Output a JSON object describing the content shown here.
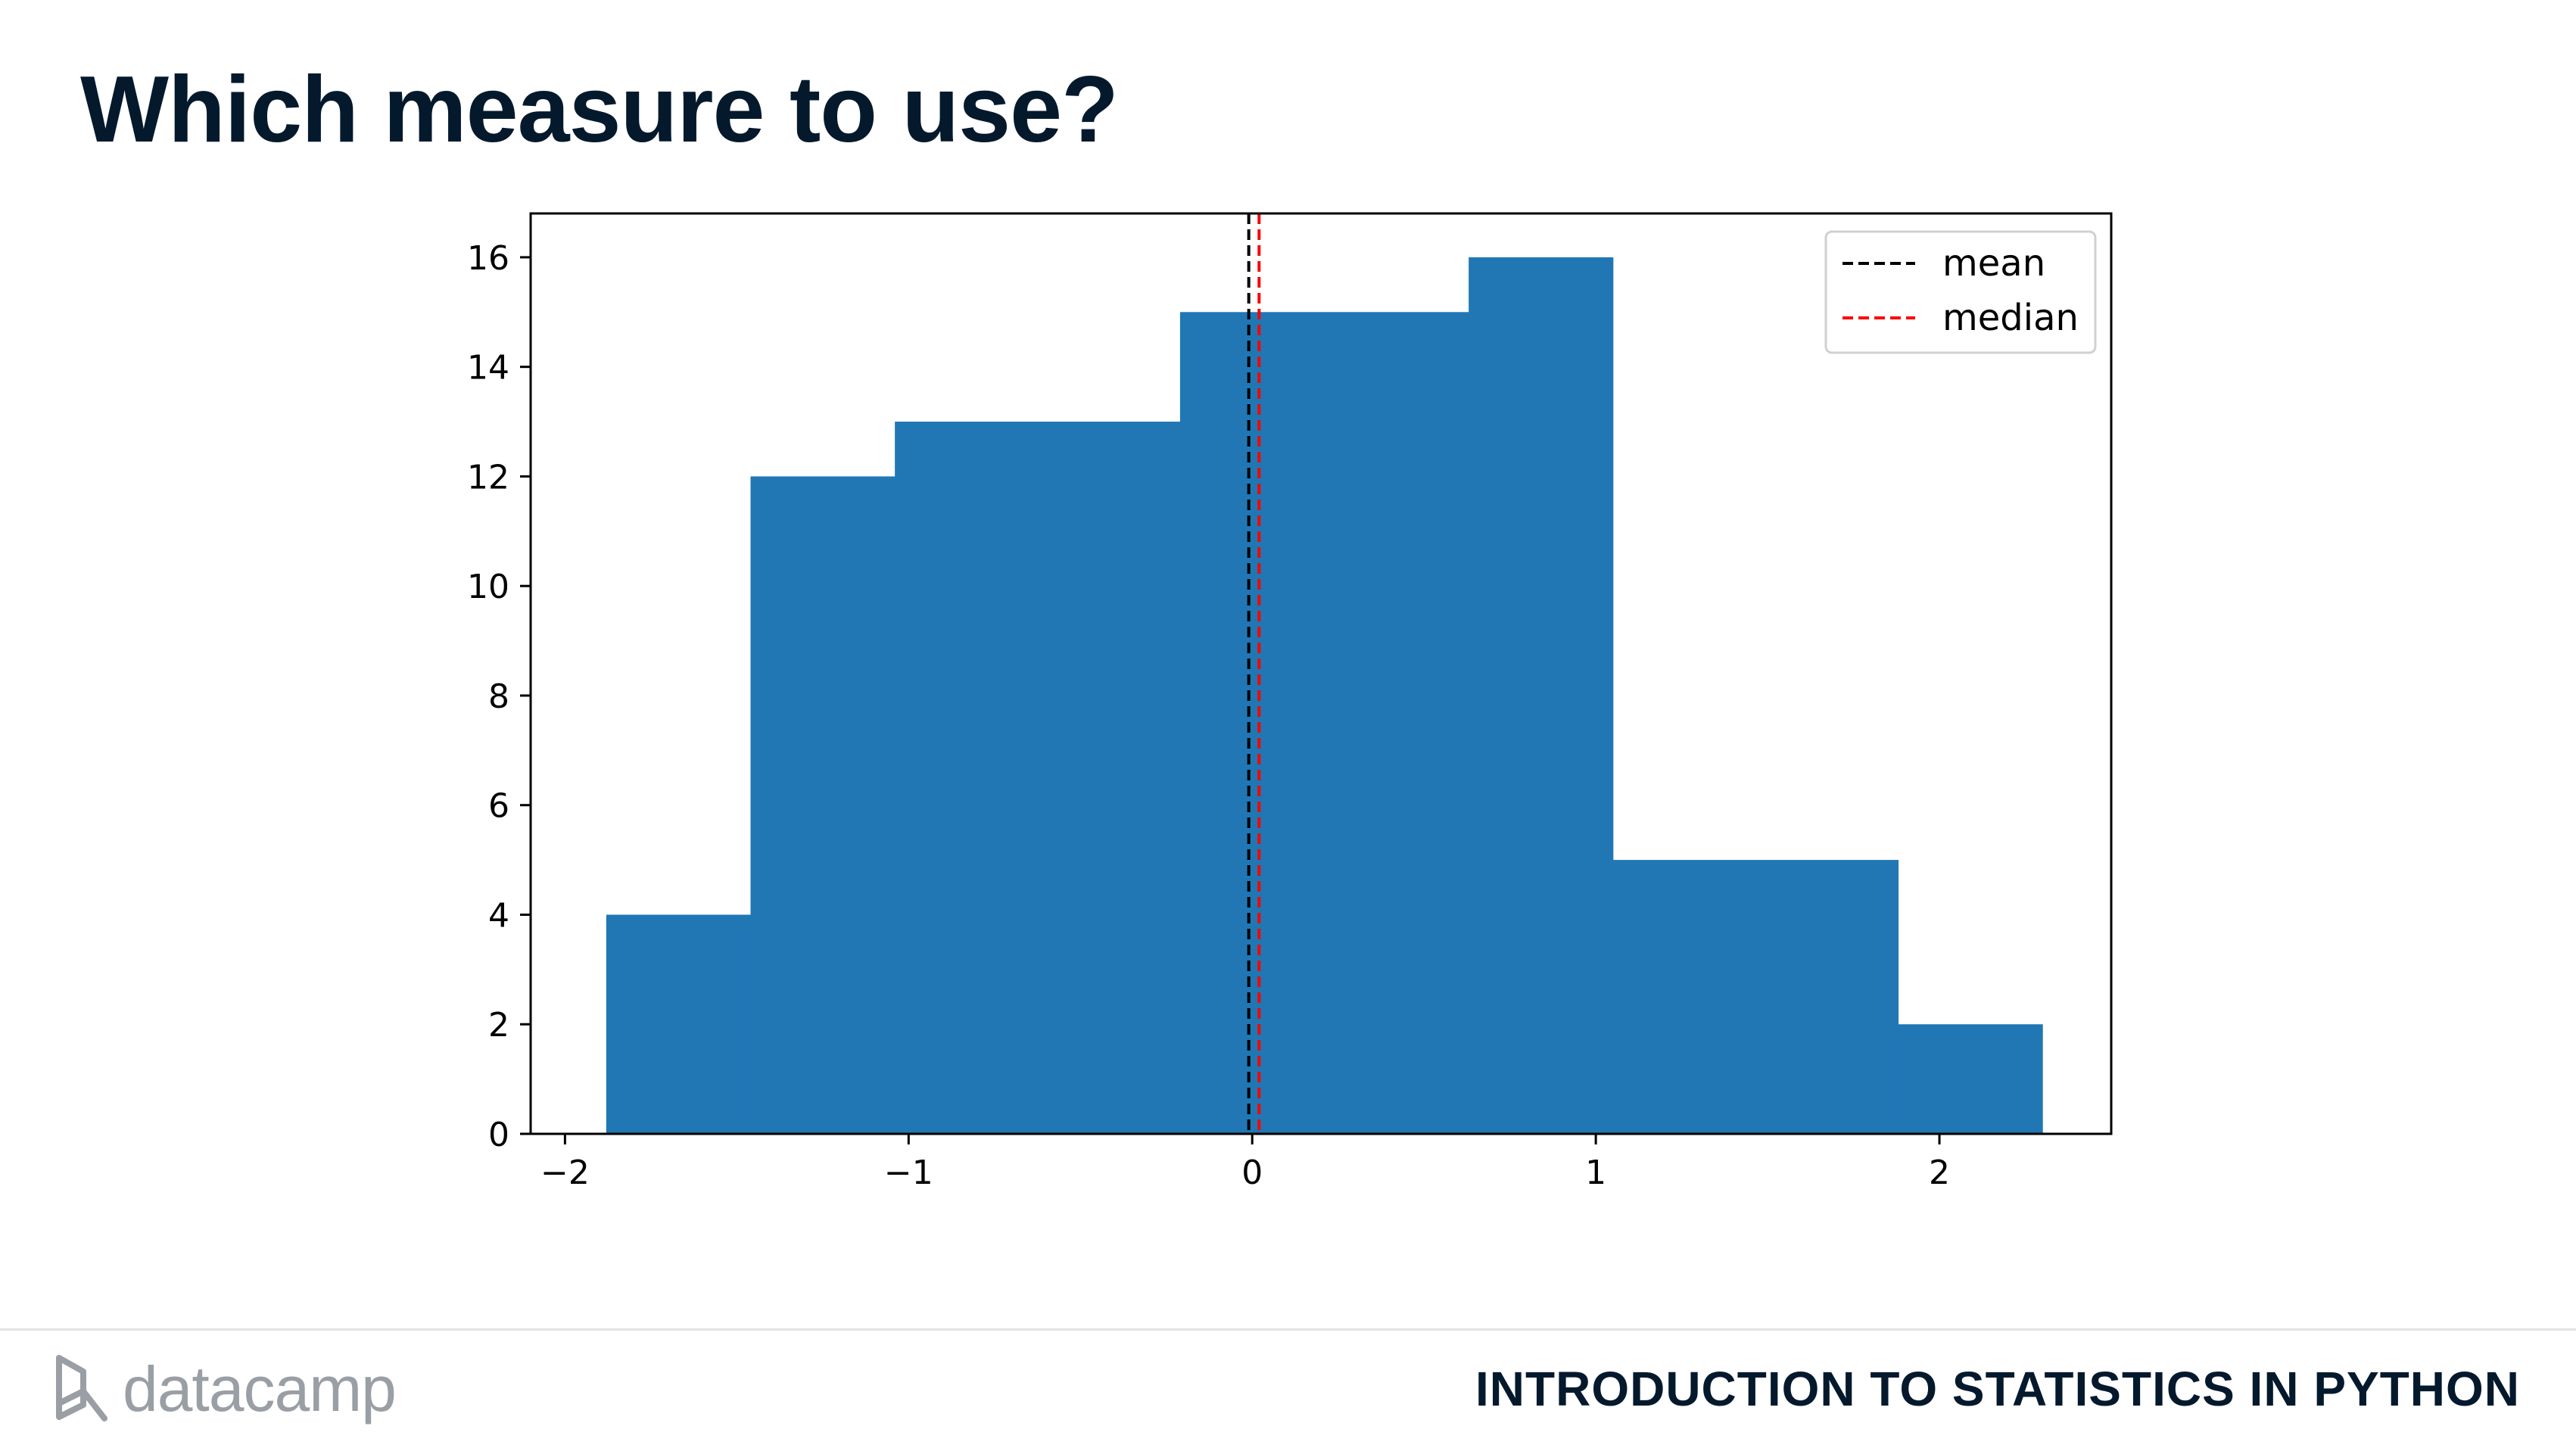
{
  "slide": {
    "title": "Which measure to use?"
  },
  "footer": {
    "logo_text": "datacamp",
    "course_title": "INTRODUCTION TO STATISTICS IN PYTHON"
  },
  "colors": {
    "title": "#05192d",
    "bar": "#2077b4",
    "mean_line": "#000000",
    "median_line": "#ff0000",
    "logo": "#9a9fa5"
  },
  "chart_data": {
    "type": "bar",
    "histogram": true,
    "bin_edges": [
      -1.88,
      -1.46,
      -1.04,
      -0.62,
      -0.21,
      0.21,
      0.63,
      1.05,
      1.46,
      1.88,
      2.3
    ],
    "counts": [
      4,
      12,
      13,
      13,
      15,
      15,
      16,
      5,
      5,
      2
    ],
    "xlim": [
      -2.1,
      2.5
    ],
    "ylim": [
      0,
      16.8
    ],
    "xticks": [
      -2,
      -1,
      0,
      1,
      2
    ],
    "xtick_labels": [
      "−2",
      "−1",
      "0",
      "1",
      "2"
    ],
    "yticks": [
      0,
      2,
      4,
      6,
      8,
      10,
      12,
      14,
      16
    ],
    "ytick_labels": [
      "0",
      "2",
      "4",
      "6",
      "8",
      "10",
      "12",
      "14",
      "16"
    ],
    "vlines": [
      {
        "name": "mean",
        "x": -0.01,
        "color": "#000000",
        "style": "dashed"
      },
      {
        "name": "median",
        "x": 0.02,
        "color": "#ff0000",
        "style": "dashed"
      }
    ],
    "legend": {
      "placement": "top-right",
      "entries": [
        "mean",
        "median"
      ]
    },
    "grid": false,
    "title": "",
    "xlabel": "",
    "ylabel": ""
  }
}
